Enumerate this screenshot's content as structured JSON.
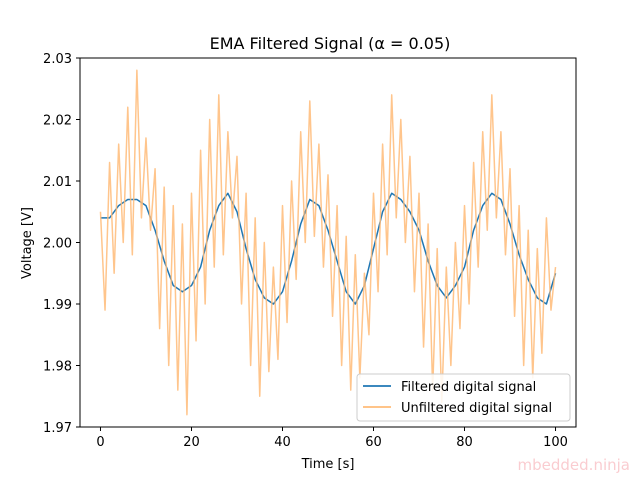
{
  "chart_data": {
    "type": "line",
    "title": "EMA Filtered Signal (α = 0.05)",
    "xlabel": "Time [s]",
    "ylabel": "Voltage [V]",
    "xlim": [
      -4.5,
      104.5
    ],
    "ylim": [
      1.97,
      2.03
    ],
    "x_ticks": [
      0,
      20,
      40,
      60,
      80,
      100
    ],
    "x_tick_labels": [
      "0",
      "20",
      "40",
      "60",
      "80",
      "100"
    ],
    "y_ticks": [
      1.97,
      1.98,
      1.99,
      2.0,
      2.01,
      2.02,
      2.03
    ],
    "y_tick_labels": [
      "1.97",
      "1.98",
      "1.99",
      "2.00",
      "2.01",
      "2.02",
      "2.03"
    ],
    "grid": false,
    "legend_position": "bottom-right",
    "series": [
      {
        "name": "Filtered digital signal",
        "color": "#1f77b4",
        "x": [
          0,
          2,
          4,
          6,
          8,
          10,
          12,
          14,
          16,
          18,
          20,
          22,
          24,
          26,
          28,
          30,
          32,
          34,
          36,
          38,
          40,
          42,
          44,
          46,
          48,
          50,
          52,
          54,
          56,
          58,
          60,
          62,
          64,
          66,
          68,
          70,
          72,
          74,
          76,
          78,
          80,
          82,
          84,
          86,
          88,
          90,
          92,
          94,
          96,
          98,
          100
        ],
        "values": [
          2.004,
          2.004,
          2.006,
          2.007,
          2.007,
          2.006,
          2.002,
          1.997,
          1.993,
          1.992,
          1.993,
          1.996,
          2.002,
          2.006,
          2.008,
          2.005,
          1.999,
          1.994,
          1.991,
          1.99,
          1.992,
          1.997,
          2.003,
          2.007,
          2.006,
          2.002,
          1.997,
          1.992,
          1.99,
          1.993,
          1.999,
          2.005,
          2.008,
          2.007,
          2.005,
          2.002,
          1.997,
          1.993,
          1.991,
          1.993,
          1.996,
          2.002,
          2.006,
          2.008,
          2.007,
          2.003,
          1.998,
          1.994,
          1.991,
          1.99,
          1.995
        ]
      },
      {
        "name": "Unfiltered digital signal",
        "color": "#ffbb78",
        "x": [
          0,
          1,
          2,
          3,
          4,
          5,
          6,
          7,
          8,
          9,
          10,
          11,
          12,
          13,
          14,
          15,
          16,
          17,
          18,
          19,
          20,
          21,
          22,
          23,
          24,
          25,
          26,
          27,
          28,
          29,
          30,
          31,
          32,
          33,
          34,
          35,
          36,
          37,
          38,
          39,
          40,
          41,
          42,
          43,
          44,
          45,
          46,
          47,
          48,
          49,
          50,
          51,
          52,
          53,
          54,
          55,
          56,
          57,
          58,
          59,
          60,
          61,
          62,
          63,
          64,
          65,
          66,
          67,
          68,
          69,
          70,
          71,
          72,
          73,
          74,
          75,
          76,
          77,
          78,
          79,
          80,
          81,
          82,
          83,
          84,
          85,
          86,
          87,
          88,
          89,
          90,
          91,
          92,
          93,
          94,
          95,
          96,
          97,
          98,
          99,
          100
        ],
        "values": [
          2.005,
          1.989,
          2.013,
          1.995,
          2.016,
          2.0,
          2.022,
          1.998,
          2.028,
          2.004,
          2.017,
          2.002,
          2.012,
          1.986,
          2.009,
          1.98,
          2.006,
          1.976,
          2.003,
          1.972,
          2.008,
          1.984,
          2.015,
          1.99,
          2.02,
          1.996,
          2.024,
          1.998,
          2.018,
          2.004,
          2.014,
          1.99,
          2.008,
          1.98,
          2.004,
          1.975,
          2.0,
          1.979,
          1.996,
          1.981,
          2.006,
          1.987,
          2.01,
          1.994,
          2.018,
          2.0,
          2.023,
          2.001,
          2.016,
          1.996,
          2.011,
          1.988,
          2.006,
          1.98,
          2.001,
          1.976,
          1.998,
          1.978,
          1.995,
          1.985,
          2.008,
          1.992,
          2.016,
          1.998,
          2.024,
          2.004,
          2.02,
          2.0,
          2.014,
          1.992,
          2.008,
          1.983,
          2.003,
          1.976,
          1.999,
          1.974,
          1.996,
          1.98,
          2.0,
          1.986,
          2.006,
          1.99,
          2.013,
          1.996,
          2.018,
          2.002,
          2.024,
          2.004,
          2.018,
          1.998,
          2.012,
          1.988,
          2.006,
          1.98,
          2.002,
          1.978,
          1.999,
          1.982,
          2.004,
          1.989,
          1.996
        ]
      }
    ]
  },
  "watermark": "mbedded.ninja"
}
